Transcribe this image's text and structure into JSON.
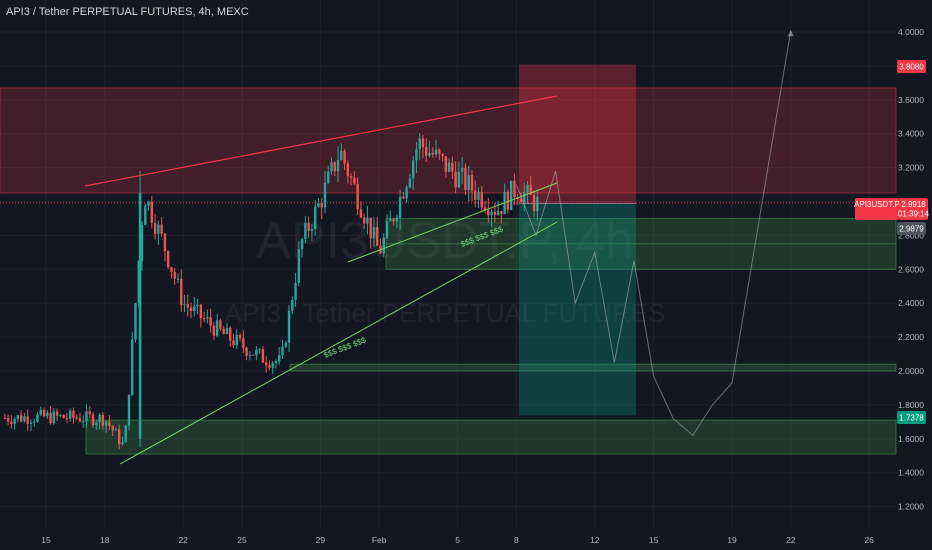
{
  "header": {
    "title": "API3 / Tether PERPETUAL FUTURES, 4h, MEXC"
  },
  "watermark": {
    "symbol": "API3USDT.P, 4h",
    "name": "API3 / Tether PERPETUAL FUTURES"
  },
  "price_tags": {
    "stop": {
      "label": "3.8080",
      "value": 3.808,
      "color": "#f23645"
    },
    "symbol": {
      "label": "API3USDT.P",
      "price": "2.9918",
      "countdown": "01:39:14",
      "value": 2.9918,
      "color": "#f23645"
    },
    "entry": {
      "label": "2.9879",
      "value": 2.9879,
      "color": "#50535e"
    },
    "target": {
      "label": "1.7378",
      "value": 1.7378,
      "color": "#089981"
    }
  },
  "annotations": {
    "liquidity_upper": "$$$ $$$ $$$",
    "liquidity_lower": "$$$ $$$ $$$"
  },
  "chart_data": {
    "type": "candlestick",
    "title": "API3 / Tether PERPETUAL FUTURES, 4h, MEXC",
    "x_tick_labels": [
      "15",
      "18",
      "22",
      "25",
      "29",
      "Feb",
      "5",
      "8",
      "12",
      "15",
      "19",
      "22",
      "26"
    ],
    "y_tick_labels": [
      "4.0000",
      "3.8000",
      "3.6000",
      "3.4000",
      "3.2000",
      "3.0000",
      "2.8000",
      "2.6000",
      "2.4000",
      "2.2000",
      "2.0000",
      "1.8000",
      "1.6000",
      "1.4000",
      "1.2000"
    ],
    "ylim": [
      1.15,
      4.15
    ],
    "grid": true,
    "colors": {
      "up": "#26a69a",
      "down": "#ef5350",
      "background": "#131722"
    },
    "candles_approx": [
      {
        "date": "Jan 12",
        "close": 1.72
      },
      {
        "date": "Jan 15",
        "close": 1.73
      },
      {
        "date": "Jan 18",
        "close": 1.72
      },
      {
        "date": "Jan 19",
        "close": 1.55
      },
      {
        "date": "Jan 20",
        "close": 3.05
      },
      {
        "date": "Jan 21",
        "close": 2.75
      },
      {
        "date": "Jan 22",
        "close": 2.4
      },
      {
        "date": "Jan 24",
        "close": 2.22
      },
      {
        "date": "Jan 26",
        "close": 2.08
      },
      {
        "date": "Jan 27",
        "close": 2.05
      },
      {
        "date": "Jan 28",
        "close": 2.75
      },
      {
        "date": "Jan 29",
        "close": 3.0
      },
      {
        "date": "Jan 30",
        "close": 3.3
      },
      {
        "date": "Jan 31",
        "close": 3.0
      },
      {
        "date": "Feb 1",
        "close": 2.7
      },
      {
        "date": "Feb 2",
        "close": 3.0
      },
      {
        "date": "Feb 3",
        "close": 3.35
      },
      {
        "date": "Feb 4",
        "close": 3.25
      },
      {
        "date": "Feb 5",
        "close": 3.15
      },
      {
        "date": "Feb 7",
        "close": 2.95
      },
      {
        "date": "Feb 8",
        "close": 3.08
      },
      {
        "date": "Feb 9",
        "close": 2.99
      }
    ],
    "zones": [
      {
        "kind": "supply",
        "from": 3.05,
        "to": 3.67
      },
      {
        "kind": "demand",
        "from": 2.6,
        "to": 2.9
      },
      {
        "kind": "demand",
        "from": 2.0,
        "to": 2.04
      },
      {
        "kind": "demand",
        "from": 1.51,
        "to": 1.71
      }
    ],
    "position": {
      "entry": 2.9879,
      "stop": 3.808,
      "target": 1.7378
    },
    "projection": [
      {
        "date": "Feb 8",
        "value": 3.1
      },
      {
        "date": "Feb 9",
        "value": 2.8
      },
      {
        "date": "Feb 10",
        "value": 3.18
      },
      {
        "date": "Feb 11",
        "value": 2.4
      },
      {
        "date": "Feb 12",
        "value": 2.7
      },
      {
        "date": "Feb 13",
        "value": 2.05
      },
      {
        "date": "Feb 14",
        "value": 2.65
      },
      {
        "date": "Feb 15",
        "value": 1.97
      },
      {
        "date": "Feb 16",
        "value": 1.72
      },
      {
        "date": "Feb 17",
        "value": 1.62
      },
      {
        "date": "Feb 18",
        "value": 1.8
      },
      {
        "date": "Feb 19",
        "value": 1.93
      },
      {
        "date": "Feb 22",
        "value": 4.01
      }
    ]
  }
}
